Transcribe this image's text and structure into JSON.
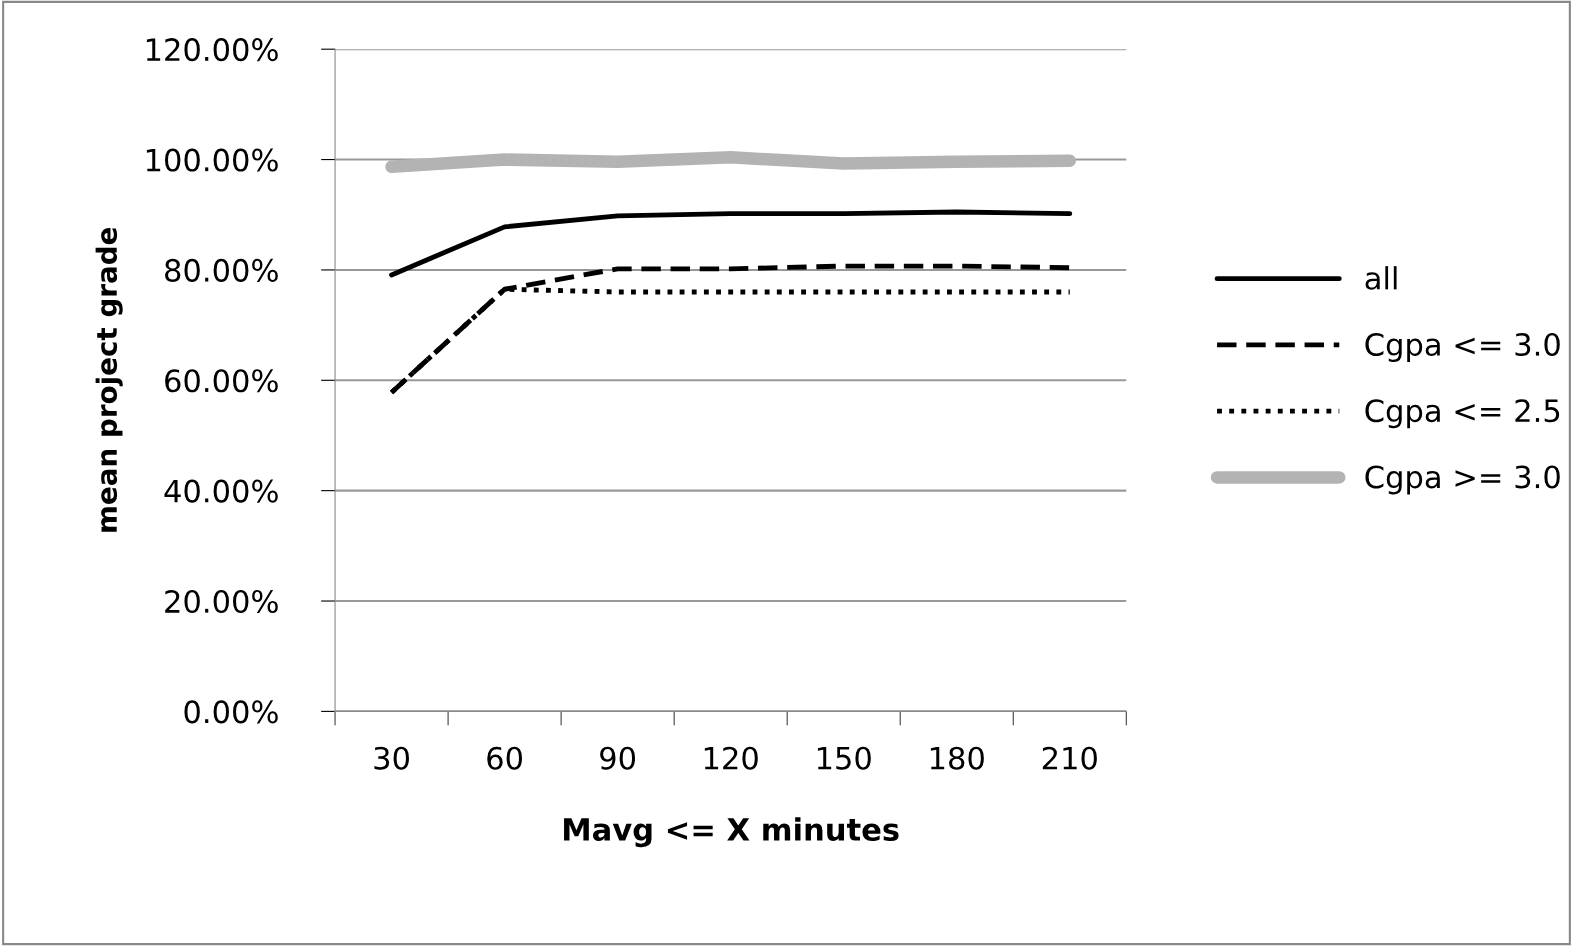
{
  "chart_data": {
    "type": "line",
    "xlabel": "Mavg <= X minutes",
    "ylabel": "mean project grade",
    "categories": [
      "30",
      "60",
      "90",
      "120",
      "150",
      "180",
      "210"
    ],
    "series": [
      {
        "name": "all",
        "color": "#000000",
        "line_style": "solid",
        "values": [
          79.1,
          87.8,
          89.8,
          90.2,
          90.2,
          90.5,
          90.2
        ]
      },
      {
        "name": "Cgpa <= 3.0",
        "color": "#000000",
        "line_style": "dashed",
        "values": [
          57.8,
          76.5,
          80.2,
          80.2,
          80.7,
          80.7,
          80.4
        ]
      },
      {
        "name": "Cgpa <= 2.5",
        "color": "#000000",
        "line_style": "dotted",
        "values": [
          57.8,
          76.5,
          76.0,
          76.0,
          76.0,
          76.0,
          76.0
        ]
      },
      {
        "name": "Cgpa >= 3.0",
        "color": "#b3b3b3",
        "line_style": "solid",
        "values": [
          98.7,
          100.0,
          99.6,
          100.4,
          99.3,
          99.6,
          99.8
        ]
      }
    ],
    "ylim": [
      0,
      120
    ],
    "yticks": [
      {
        "value": 0,
        "label": "0.00%"
      },
      {
        "value": 20,
        "label": "20.00%"
      },
      {
        "value": 40,
        "label": "40.00%"
      },
      {
        "value": 60,
        "label": "60.00%"
      },
      {
        "value": 80,
        "label": "80.00%"
      },
      {
        "value": 100,
        "label": "100.00%"
      },
      {
        "value": 120,
        "label": "120.00%"
      }
    ],
    "grid": "y",
    "legend": "right",
    "marker": "none"
  }
}
